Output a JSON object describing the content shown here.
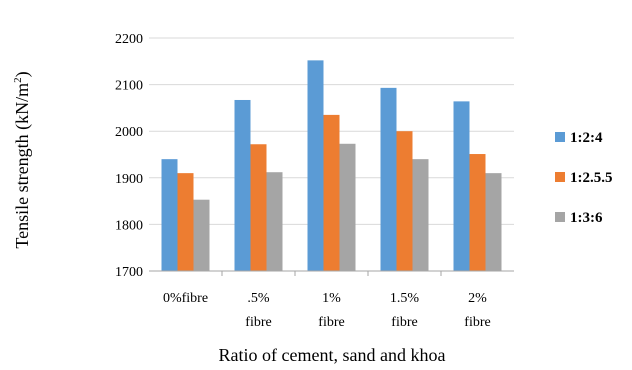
{
  "chart_data": {
    "type": "bar",
    "categories": [
      [
        "0%fibre"
      ],
      [
        ".5%",
        "fibre"
      ],
      [
        "1%",
        "fibre"
      ],
      [
        "1.5%",
        "fibre"
      ],
      [
        "2%",
        "fibre"
      ]
    ],
    "series": [
      {
        "name": "1:2:4",
        "color": "#5b9bd5",
        "values": [
          1940,
          2067,
          2152,
          2093,
          2064
        ]
      },
      {
        "name": "1:2.5.5",
        "color": "#ed7d31",
        "values": [
          1910,
          1972,
          2035,
          2000,
          1951
        ]
      },
      {
        "name": "1:3:6",
        "color": "#a5a5a5",
        "values": [
          1853,
          1912,
          1973,
          1940,
          1910
        ]
      }
    ],
    "ylabel": "Tensile strength (kN/m",
    "ylabel_superscript": "2",
    "ylabel_suffix": ")",
    "xlabel": "Ratio of cement, sand and khoa",
    "ylim": [
      1700,
      2200
    ],
    "yticks": [
      1700,
      1800,
      1900,
      2000,
      2100,
      2200
    ],
    "grid": true,
    "legend_position": "right"
  }
}
